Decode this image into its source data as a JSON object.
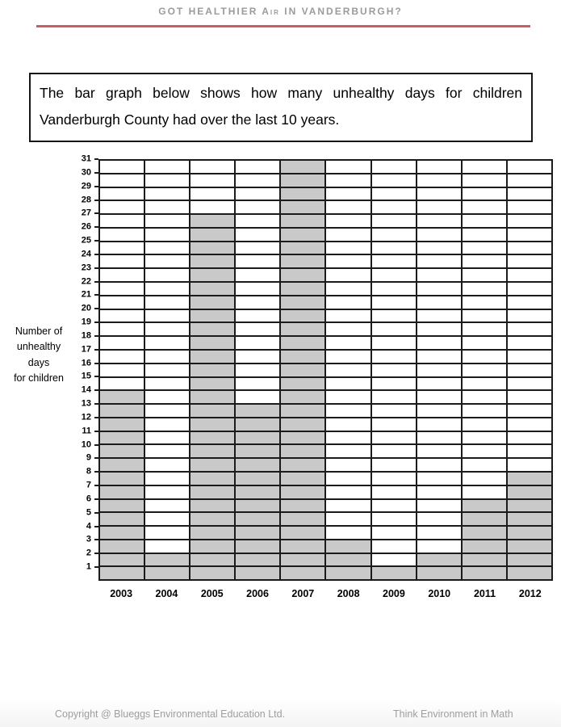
{
  "page": {
    "header_title": "GOT HEALTHIER Air IN VANDERBURGH?",
    "rule_color": "#c75f5f",
    "footer_left": "Copyright @ Blueggs Environmental Education Ltd.",
    "footer_right": "Think Environment in Math"
  },
  "instruction": {
    "full_text": "The bar graph below shows how many unhealthy days for children Vanderburgh County had over the last 10 years.",
    "lines": [
      "The bar graph below shows how many unhealthy days for children",
      "Vanderburgh County had over the last 10 years."
    ]
  },
  "chart_data": {
    "type": "bar",
    "title": "",
    "categories": [
      "2003",
      "2004",
      "2005",
      "2006",
      "2007",
      "2008",
      "2009",
      "2010",
      "2011",
      "2012"
    ],
    "values": [
      14,
      2,
      27,
      13,
      31,
      3,
      1,
      2,
      6,
      8
    ],
    "xlabel": "",
    "ylabel": "Number of unhealthy days for children",
    "ylabel_lines": [
      "Number of",
      "unhealthy",
      "days",
      "for children"
    ],
    "ylim": [
      0,
      31
    ],
    "ytick_step": 1,
    "yticks": [
      1,
      2,
      3,
      4,
      5,
      6,
      7,
      8,
      9,
      10,
      11,
      12,
      13,
      14,
      15,
      16,
      17,
      18,
      19,
      20,
      21,
      22,
      23,
      24,
      25,
      26,
      27,
      28,
      29,
      30,
      31
    ],
    "grid": true,
    "legend": false,
    "bar_color": "#c9c9c9",
    "grid_color": "#1b1b1b",
    "bar_width": "full-column"
  }
}
